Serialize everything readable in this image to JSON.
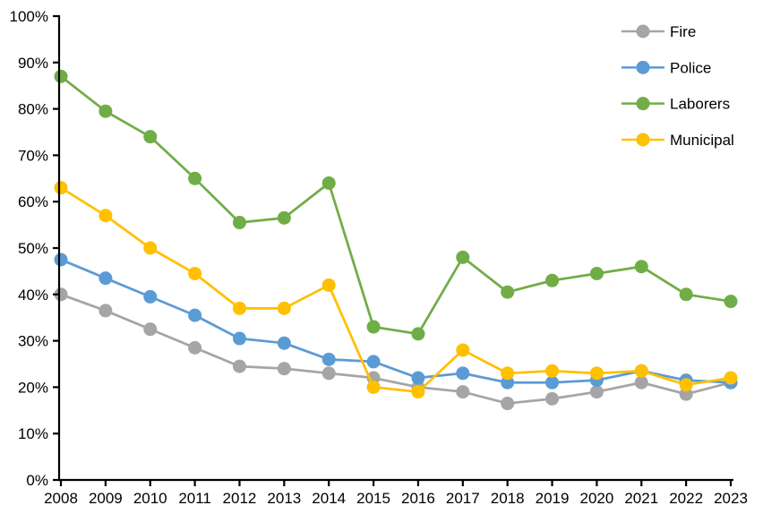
{
  "figure": {
    "background": "#FFFFFF",
    "axis_color": "#000000",
    "text_color": "#000000"
  },
  "chart_data": {
    "type": "line",
    "title": "",
    "xlabel": "",
    "ylabel": "",
    "x": [
      2008,
      2009,
      2010,
      2011,
      2012,
      2013,
      2014,
      2015,
      2016,
      2017,
      2018,
      2019,
      2020,
      2021,
      2022,
      2023
    ],
    "x_tick_labels": [
      "2008",
      "2009",
      "2010",
      "2011",
      "2012",
      "2013",
      "2014",
      "2015",
      "2016",
      "2017",
      "2018",
      "2019",
      "2020",
      "2021",
      "2022",
      "2023"
    ],
    "ylim": [
      0,
      100
    ],
    "ytick_step": 10,
    "y_tick_labels": [
      "0%",
      "10%",
      "20%",
      "30%",
      "40%",
      "50%",
      "60%",
      "70%",
      "80%",
      "90%",
      "100%"
    ],
    "grid": false,
    "legend_position": "top-right",
    "marker": "circle",
    "series": [
      {
        "name": "Fire",
        "color": "#A5A5A5",
        "values": [
          40,
          36.5,
          32.5,
          28.5,
          24.5,
          24,
          23,
          22,
          20,
          19,
          16.5,
          17.5,
          19,
          21,
          18.5,
          21
        ]
      },
      {
        "name": "Police",
        "color": "#5B9BD5",
        "values": [
          47.5,
          43.5,
          39.5,
          35.5,
          30.5,
          29.5,
          26,
          25.5,
          22,
          23,
          21,
          21,
          21.5,
          23.5,
          21.5,
          21
        ]
      },
      {
        "name": "Laborers",
        "color": "#70AD47",
        "values": [
          87,
          79.5,
          74,
          65,
          55.5,
          56.5,
          64,
          33,
          31.5,
          48,
          40.5,
          43,
          44.5,
          46,
          40,
          38.5
        ]
      },
      {
        "name": "Municipal",
        "color": "#FFC000",
        "values": [
          63,
          57,
          50,
          44.5,
          37,
          37,
          42,
          20,
          19,
          28,
          23,
          23.5,
          23,
          23.5,
          20.5,
          22
        ]
      }
    ],
    "legend_labels": [
      "Fire",
      "Police",
      "Laborers",
      "Municipal"
    ]
  }
}
